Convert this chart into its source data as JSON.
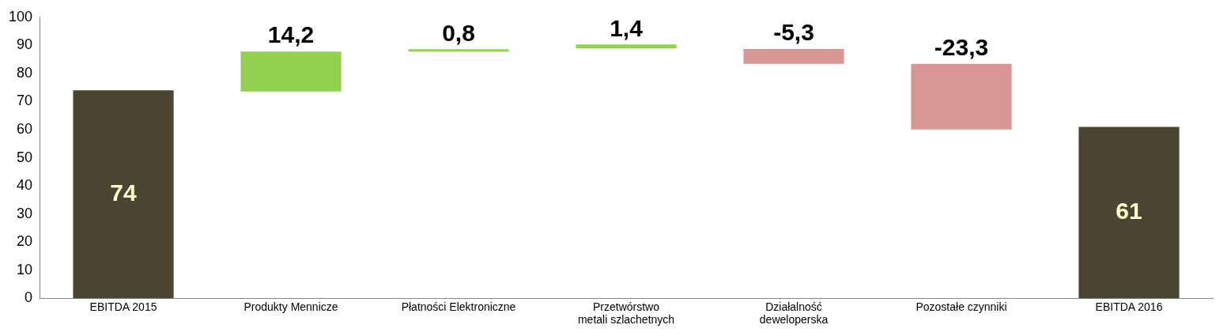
{
  "chart_data": {
    "type": "bar",
    "categories": [
      "EBITDA 2015",
      "Produkty Mennicze",
      "Płatności Elektroniczne",
      "Przetwórstwo metali szlachetnych",
      "Działalność deweloperska",
      "Pozostałe czynniki",
      "EBITDA 2016"
    ],
    "values": [
      74,
      14.2,
      0.8,
      1.4,
      -5.3,
      -23.3,
      61
    ],
    "base": [
      0,
      73.6,
      87.8,
      88.9,
      88.7,
      83.4,
      0
    ],
    "colors": [
      "#4a4530",
      "#92d050",
      "#92d050",
      "#92d050",
      "#d99694",
      "#d99694",
      "#4a4530"
    ],
    "value_labels": [
      "74",
      "14,2",
      "0,8",
      "1,4",
      "-5,3",
      "-23,3",
      "61"
    ],
    "ylim": [
      0,
      100
    ],
    "yticks": [
      0,
      10,
      20,
      30,
      40,
      50,
      60,
      70,
      80,
      90,
      100
    ],
    "grid": false,
    "legend": false
  }
}
